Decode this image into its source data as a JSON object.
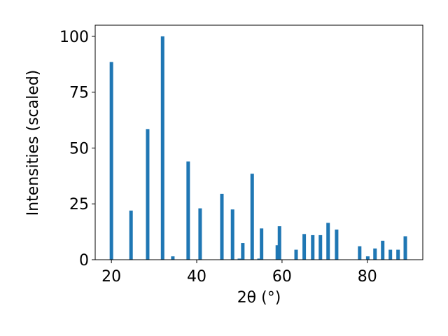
{
  "chart_data": {
    "type": "bar",
    "x_label": "2θ (°)",
    "y_label": "Intensities (scaled)",
    "color": "#1f77b4",
    "x": [
      20.0,
      24.6,
      28.5,
      32.0,
      34.4,
      38.0,
      40.8,
      45.9,
      48.4,
      50.0,
      50.8,
      53.0,
      54.6,
      55.2,
      58.9,
      59.4,
      63.3,
      65.2,
      67.2,
      69.0,
      70.8,
      72.8,
      78.2,
      80.1,
      81.8,
      83.6,
      85.4,
      87.2,
      88.9
    ],
    "values": [
      88.5,
      22,
      58.5,
      100,
      1.5,
      44,
      23,
      29.5,
      22.5,
      0.5,
      7.5,
      38.5,
      0.5,
      14,
      6.5,
      15,
      4.5,
      11.5,
      11,
      11,
      16.5,
      13.5,
      6,
      1.5,
      5,
      8.5,
      4.5,
      4.5,
      10.5
    ],
    "xlim": [
      16.2,
      93.0
    ],
    "ylim": [
      0,
      105
    ],
    "xticks": [
      20,
      40,
      60,
      80
    ],
    "yticks": [
      0,
      25,
      50,
      75,
      100
    ],
    "grid": false
  }
}
